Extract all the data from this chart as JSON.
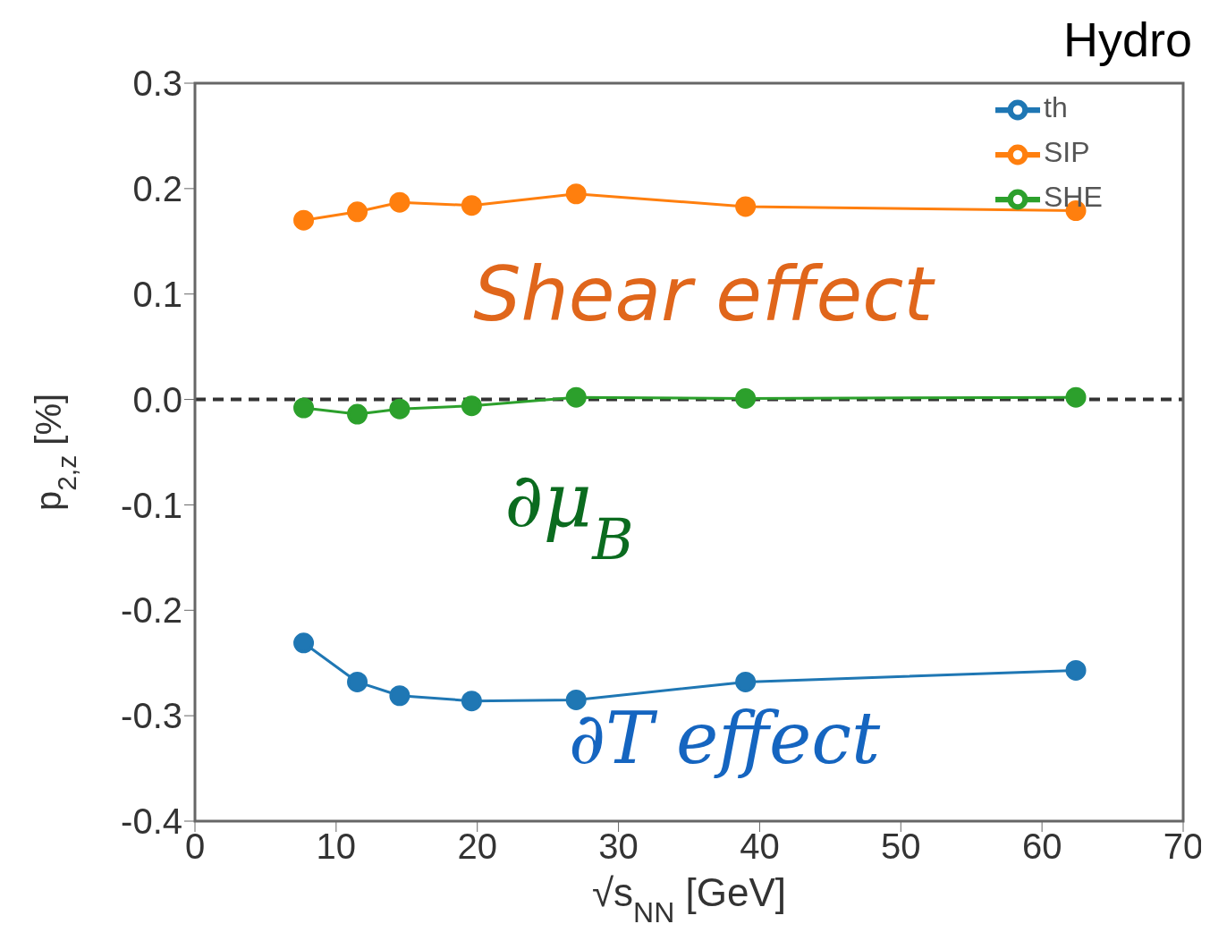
{
  "chart_data": {
    "type": "line",
    "xlabel": "√s$_{NN}$ [GeV]",
    "ylabel": "p$_{2,z}$[%]",
    "x": [
      7.7,
      11.5,
      14.5,
      19.6,
      27,
      39,
      62.4
    ],
    "series": [
      {
        "name": "th",
        "color": "#1f77b4",
        "values": [
          -0.231,
          -0.268,
          -0.281,
          -0.286,
          -0.285,
          -0.268,
          -0.257
        ]
      },
      {
        "name": "SIP",
        "color": "#ff7f0e",
        "values": [
          0.17,
          0.178,
          0.187,
          0.184,
          0.195,
          0.183,
          0.179
        ]
      },
      {
        "name": "SHE",
        "color": "#2ca02c",
        "values": [
          -0.008,
          -0.014,
          -0.009,
          -0.006,
          0.002,
          0.001,
          0.002
        ]
      }
    ],
    "xlim": [
      0,
      70
    ],
    "xticks": [
      0,
      10,
      20,
      30,
      40,
      50,
      60,
      70
    ],
    "ylim": [
      -0.4,
      0.3
    ],
    "yticks": [
      {
        "value": -0.4,
        "label": "-0.4"
      },
      {
        "value": -0.3,
        "label": "-0.3"
      },
      {
        "value": -0.2,
        "label": "-0.2"
      },
      {
        "value": -0.1,
        "label": "-0.1"
      },
      {
        "value": 0,
        "label": "0.0"
      },
      {
        "value": 0.1,
        "label": "0.1"
      },
      {
        "value": 0.2,
        "label": "0.2"
      },
      {
        "value": 0.3,
        "label": "0.3"
      }
    ],
    "ref_lines": [
      {
        "axis": "y",
        "value": 0,
        "color": "#333333",
        "line_style": "dashed"
      }
    ],
    "annotations": [
      "Hydro",
      "Shear effect",
      "∂μ$_{B}$",
      "∂T effect"
    ],
    "marker": "circle",
    "line_style": "solid",
    "legend": "top right",
    "grid": false
  }
}
